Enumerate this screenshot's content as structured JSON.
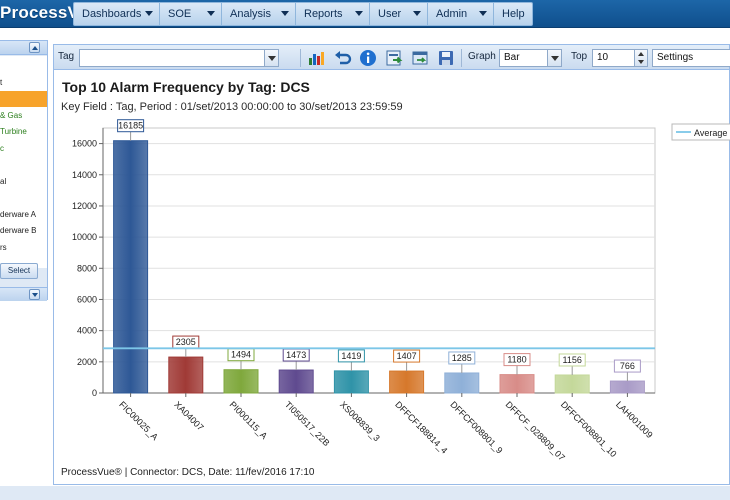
{
  "app": {
    "title": "ProcessVue"
  },
  "menu": [
    {
      "label": "Dashboards",
      "has_dropdown": true
    },
    {
      "label": "SOE",
      "has_dropdown": true
    },
    {
      "label": "Analysis",
      "has_dropdown": true
    },
    {
      "label": "Reports",
      "has_dropdown": true
    },
    {
      "label": "User",
      "has_dropdown": true
    },
    {
      "label": "Admin",
      "has_dropdown": true
    },
    {
      "label": "Help",
      "has_dropdown": false
    }
  ],
  "left_panel": {
    "items": [
      {
        "label": "",
        "selected": false
      },
      {
        "label": "t",
        "selected": false
      },
      {
        "label": "",
        "selected": true
      },
      {
        "label": "& Gas",
        "selected": false,
        "green": true
      },
      {
        "label": "Turbine",
        "selected": false,
        "green": true
      },
      {
        "label": "c",
        "selected": false,
        "green": true
      },
      {
        "label": "",
        "selected": false
      },
      {
        "label": "al",
        "selected": false
      },
      {
        "label": "",
        "selected": false
      },
      {
        "label": "derware A",
        "selected": false
      },
      {
        "label": "derware B",
        "selected": false
      },
      {
        "label": "rs",
        "selected": false
      }
    ],
    "select_label": "Select"
  },
  "toolbar": {
    "tag_label": "Tag",
    "tag_value": "",
    "graph_label": "Graph",
    "graph_value": "Bar",
    "top_label": "Top",
    "top_value": "10",
    "settings_value": "Settings",
    "icons": [
      "bar-chart-icon",
      "undo-icon",
      "info-icon",
      "export-icon",
      "print-preview-icon",
      "save-icon"
    ]
  },
  "chart": {
    "title": "Top 10 Alarm Frequency by Tag: DCS",
    "subtitle": "Key Field : Tag, Period : 01/set/2013 00:00:00 to 30/set/2013 23:59:59",
    "footer": "ProcessVue® | Connector: DCS,  Date: 11/fev/2016 17:10"
  },
  "chart_data": {
    "type": "bar",
    "title": "Top 10 Alarm Frequency by Tag: DCS",
    "categories": [
      "FIC00025_A",
      "XA04007",
      "PI000115_A",
      "TI050517_22B",
      "XS008839_3",
      "DFFCF188814_4",
      "DFFCF008801_9",
      "DFFCF_028809_07",
      "DFFCF008801_10",
      "LAH001009"
    ],
    "values": [
      16185,
      2305,
      1494,
      1473,
      1419,
      1407,
      1285,
      1180,
      1156,
      766
    ],
    "bar_colors": [
      "#2e5896",
      "#a03a36",
      "#7fa83c",
      "#5f4a8f",
      "#2f93a8",
      "#d6782b",
      "#8fb0d8",
      "#d88c88",
      "#c4d89a",
      "#a99bc7"
    ],
    "ylim": [
      0,
      17000
    ],
    "yticks": [
      0,
      2000,
      4000,
      6000,
      8000,
      10000,
      12000,
      14000,
      16000
    ],
    "average_line": {
      "label": "Average o",
      "value": 2867,
      "color": "#7cc6e8"
    },
    "legend_position": "top-right",
    "grid": true
  }
}
